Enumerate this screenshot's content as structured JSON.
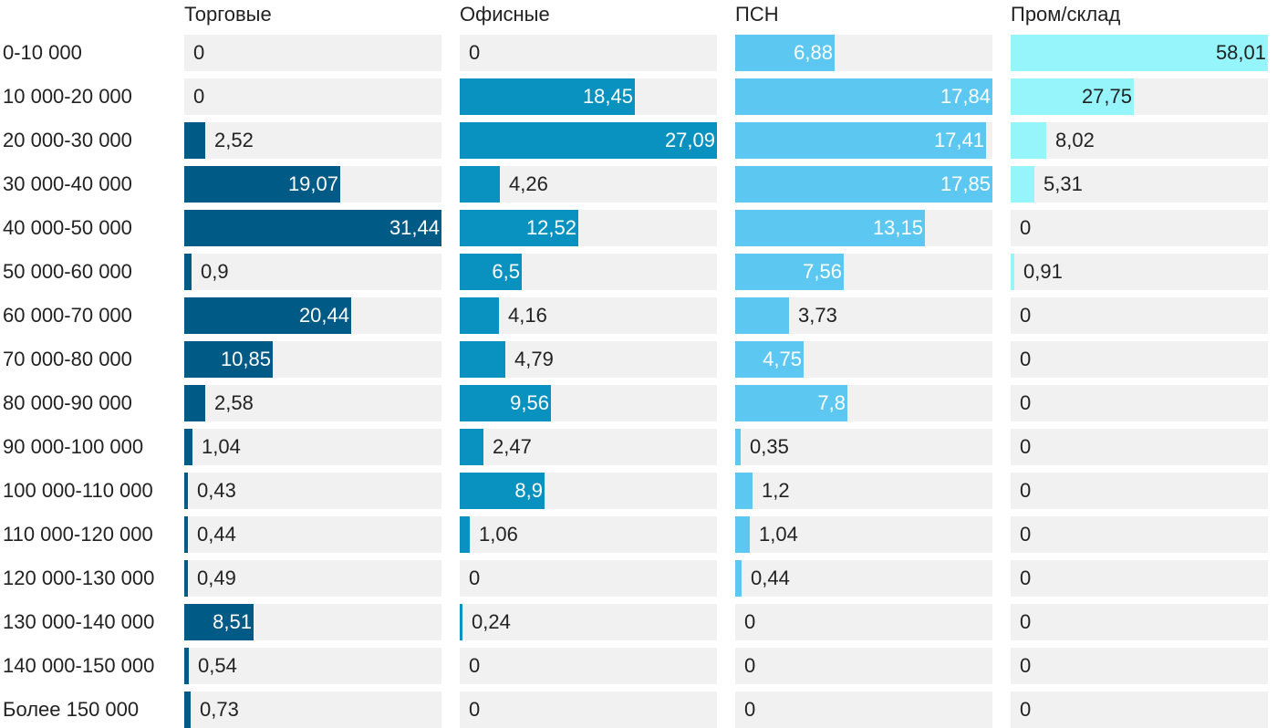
{
  "chart_data": {
    "type": "bar",
    "title": "",
    "xlabel": "",
    "ylabel": "",
    "categories": [
      "0-10 000",
      "10 000-20 000",
      "20 000-30 000",
      "30 000-40 000",
      "40 000-50 000",
      "50 000-60 000",
      "60 000-70 000",
      "70 000-80 000",
      "80 000-90 000",
      "90 000-100 000",
      "100 000-110 000",
      "110 000-120 000",
      "120 000-130 000",
      "130 000-140 000",
      "140 000-150 000",
      "Более 150 000"
    ],
    "series": [
      {
        "name": "Торговые",
        "color": "#005a86",
        "max": 31.44,
        "values": [
          0,
          0,
          2.52,
          19.07,
          31.44,
          0.9,
          20.44,
          10.85,
          2.58,
          1.04,
          0.43,
          0.44,
          0.49,
          8.51,
          0.54,
          0.73
        ],
        "labels": [
          "0",
          "0",
          "2,52",
          "19,07",
          "31,44",
          "0,9",
          "20,44",
          "10,85",
          "2,58",
          "1,04",
          "0,43",
          "0,44",
          "0,49",
          "8,51",
          "0,54",
          "0,73"
        ]
      },
      {
        "name": "Офисные",
        "color": "#0992bf",
        "max": 27.09,
        "values": [
          0,
          18.45,
          27.09,
          4.26,
          12.52,
          6.5,
          4.16,
          4.79,
          9.56,
          2.47,
          8.9,
          1.06,
          0,
          0.24,
          0,
          0
        ],
        "labels": [
          "0",
          "18,45",
          "27,09",
          "4,26",
          "12,52",
          "6,5",
          "4,16",
          "4,79",
          "9,56",
          "2,47",
          "8,9",
          "1,06",
          "0",
          "0,24",
          "0",
          "0"
        ]
      },
      {
        "name": "ПСН",
        "color": "#5cc8f2",
        "max": 17.85,
        "values": [
          6.88,
          17.84,
          17.41,
          17.85,
          13.15,
          7.56,
          3.73,
          4.75,
          7.8,
          0.35,
          1.2,
          1.04,
          0.44,
          0,
          0,
          0
        ],
        "labels": [
          "6,88",
          "17,84",
          "17,41",
          "17,85",
          "13,15",
          "7,56",
          "3,73",
          "4,75",
          "7,8",
          "0,35",
          "1,2",
          "1,04",
          "0,44",
          "0",
          "0",
          "0"
        ]
      },
      {
        "name": "Пром/склад",
        "color": "#95f5fa",
        "max": 58.01,
        "values": [
          58.01,
          27.75,
          8.02,
          5.31,
          0,
          0.91,
          0,
          0,
          0,
          0,
          0,
          0,
          0,
          0,
          0,
          0
        ],
        "labels": [
          "58,01",
          "27,75",
          "8,02",
          "5,31",
          "0",
          "0,91",
          "0",
          "0",
          "0",
          "0",
          "0",
          "0",
          "0",
          "0",
          "0",
          "0"
        ]
      }
    ]
  }
}
